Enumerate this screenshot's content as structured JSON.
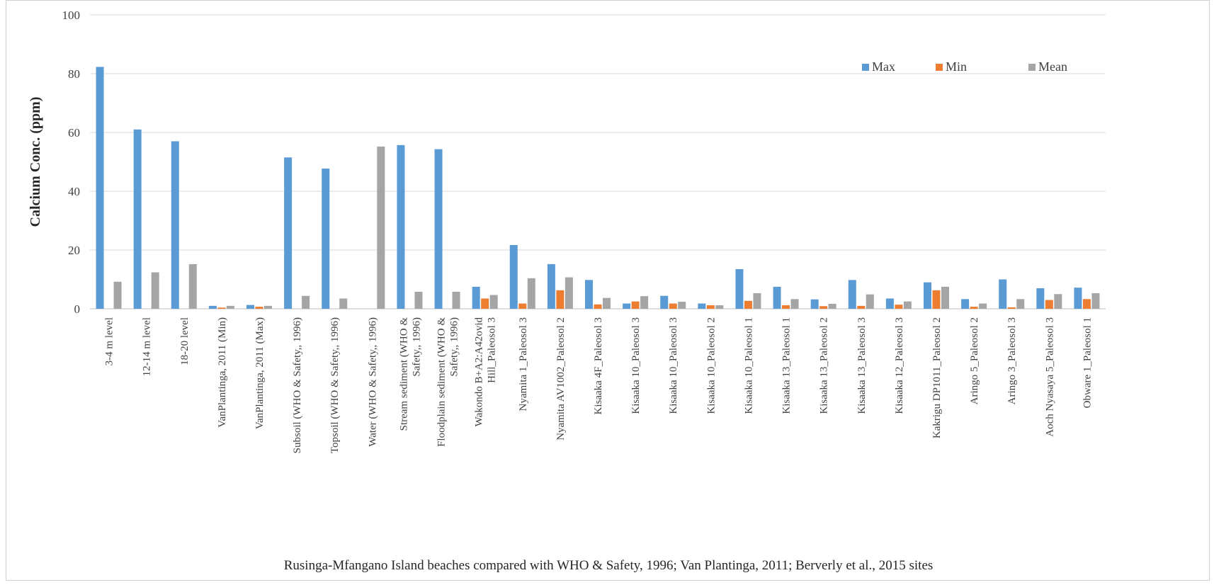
{
  "chart_data": {
    "type": "bar",
    "xlabel": "Rusinga-Mfangano Island beaches compared with WHO & Safety, 1996; Van Plantinga, 2011; Berverly et al., 2015 sites",
    "ylabel": "Calcium Conc. (ppm)",
    "ylim": [
      0,
      100
    ],
    "yticks": [
      "0",
      "20",
      "40",
      "60",
      "80",
      "100"
    ],
    "grid": true,
    "legend_position": "top-right",
    "categories": [
      [
        "3-4 m level"
      ],
      [
        "12-14 m level"
      ],
      [
        "18-20 level"
      ],
      [
        "VanPlantinga, 2011 (Min)"
      ],
      [
        "VanPlantinga, 2011 (Max)"
      ],
      [
        "Subsoil (WHO & Safety,, 1996)"
      ],
      [
        "Topsoil (WHO & Safety,, 1996)"
      ],
      [
        "Water (WHO & Safety,, 1996)"
      ],
      [
        "Stream sediment (WHO &",
        "Safety,, 1996)"
      ],
      [
        "Floodplain sediment (WHO &",
        "Safety,, 1996)"
      ],
      [
        "Wakondo B+A2:A42ovid",
        "Hill_Paleosol 3"
      ],
      [
        "Nyamita 1_Paleosol 3"
      ],
      [
        "Nyamita AV1002_Paleosol 2"
      ],
      [
        "Kisaaka 4F_Paleosol 3"
      ],
      [
        "Kisaaka 10_Paleosol 3"
      ],
      [
        "Kisaaka 10_Paleosol 3"
      ],
      [
        "Kisaaka 10_Paleosol 2"
      ],
      [
        "Kisaaka 10_Paleosol 1"
      ],
      [
        "Kisaaka 13_Paleosol 1"
      ],
      [
        "Kisaaka 13_Paleosol 2"
      ],
      [
        "Kisaaka 13_Paleosol 3"
      ],
      [
        "Kisaaka 12_Paleosol 3"
      ],
      [
        "Kakrigu DP1011_Paleosol 2"
      ],
      [
        "Aringo 5_Paleosol 2"
      ],
      [
        "Aringo 3_Paleosol 3"
      ],
      [
        "Aoch Nyasaya 5_Paleosol 3"
      ],
      [
        "Obware 1_Paleosol 1"
      ]
    ],
    "series": [
      {
        "name": "Max",
        "color": "#5b9bd5",
        "values": [
          82.3,
          61.0,
          57.0,
          1.0,
          1.3,
          51.5,
          47.7,
          0,
          55.7,
          54.3,
          7.5,
          21.7,
          15.2,
          9.8,
          1.8,
          4.4,
          1.8,
          13.5,
          7.5,
          3.2,
          9.8,
          3.5,
          9.0,
          3.3,
          10.0,
          7.0,
          7.2
        ]
      },
      {
        "name": "Min",
        "color": "#ed7d31",
        "values": [
          0,
          0,
          0,
          0.4,
          0.7,
          0,
          0,
          0,
          0,
          0,
          3.5,
          1.8,
          6.3,
          1.5,
          2.5,
          1.8,
          1.2,
          2.7,
          1.2,
          0.9,
          1.0,
          1.4,
          6.3,
          0.7,
          0.5,
          3.0,
          3.3
        ]
      },
      {
        "name": "Mean",
        "color": "#a5a5a5",
        "values": [
          9.2,
          12.4,
          15.2,
          1.0,
          1.0,
          4.4,
          3.5,
          55.2,
          5.8,
          5.8,
          4.7,
          10.4,
          10.7,
          3.7,
          4.3,
          2.4,
          1.2,
          5.3,
          3.3,
          1.7,
          4.9,
          2.5,
          7.5,
          1.8,
          3.3,
          5.0,
          5.3
        ]
      }
    ]
  }
}
